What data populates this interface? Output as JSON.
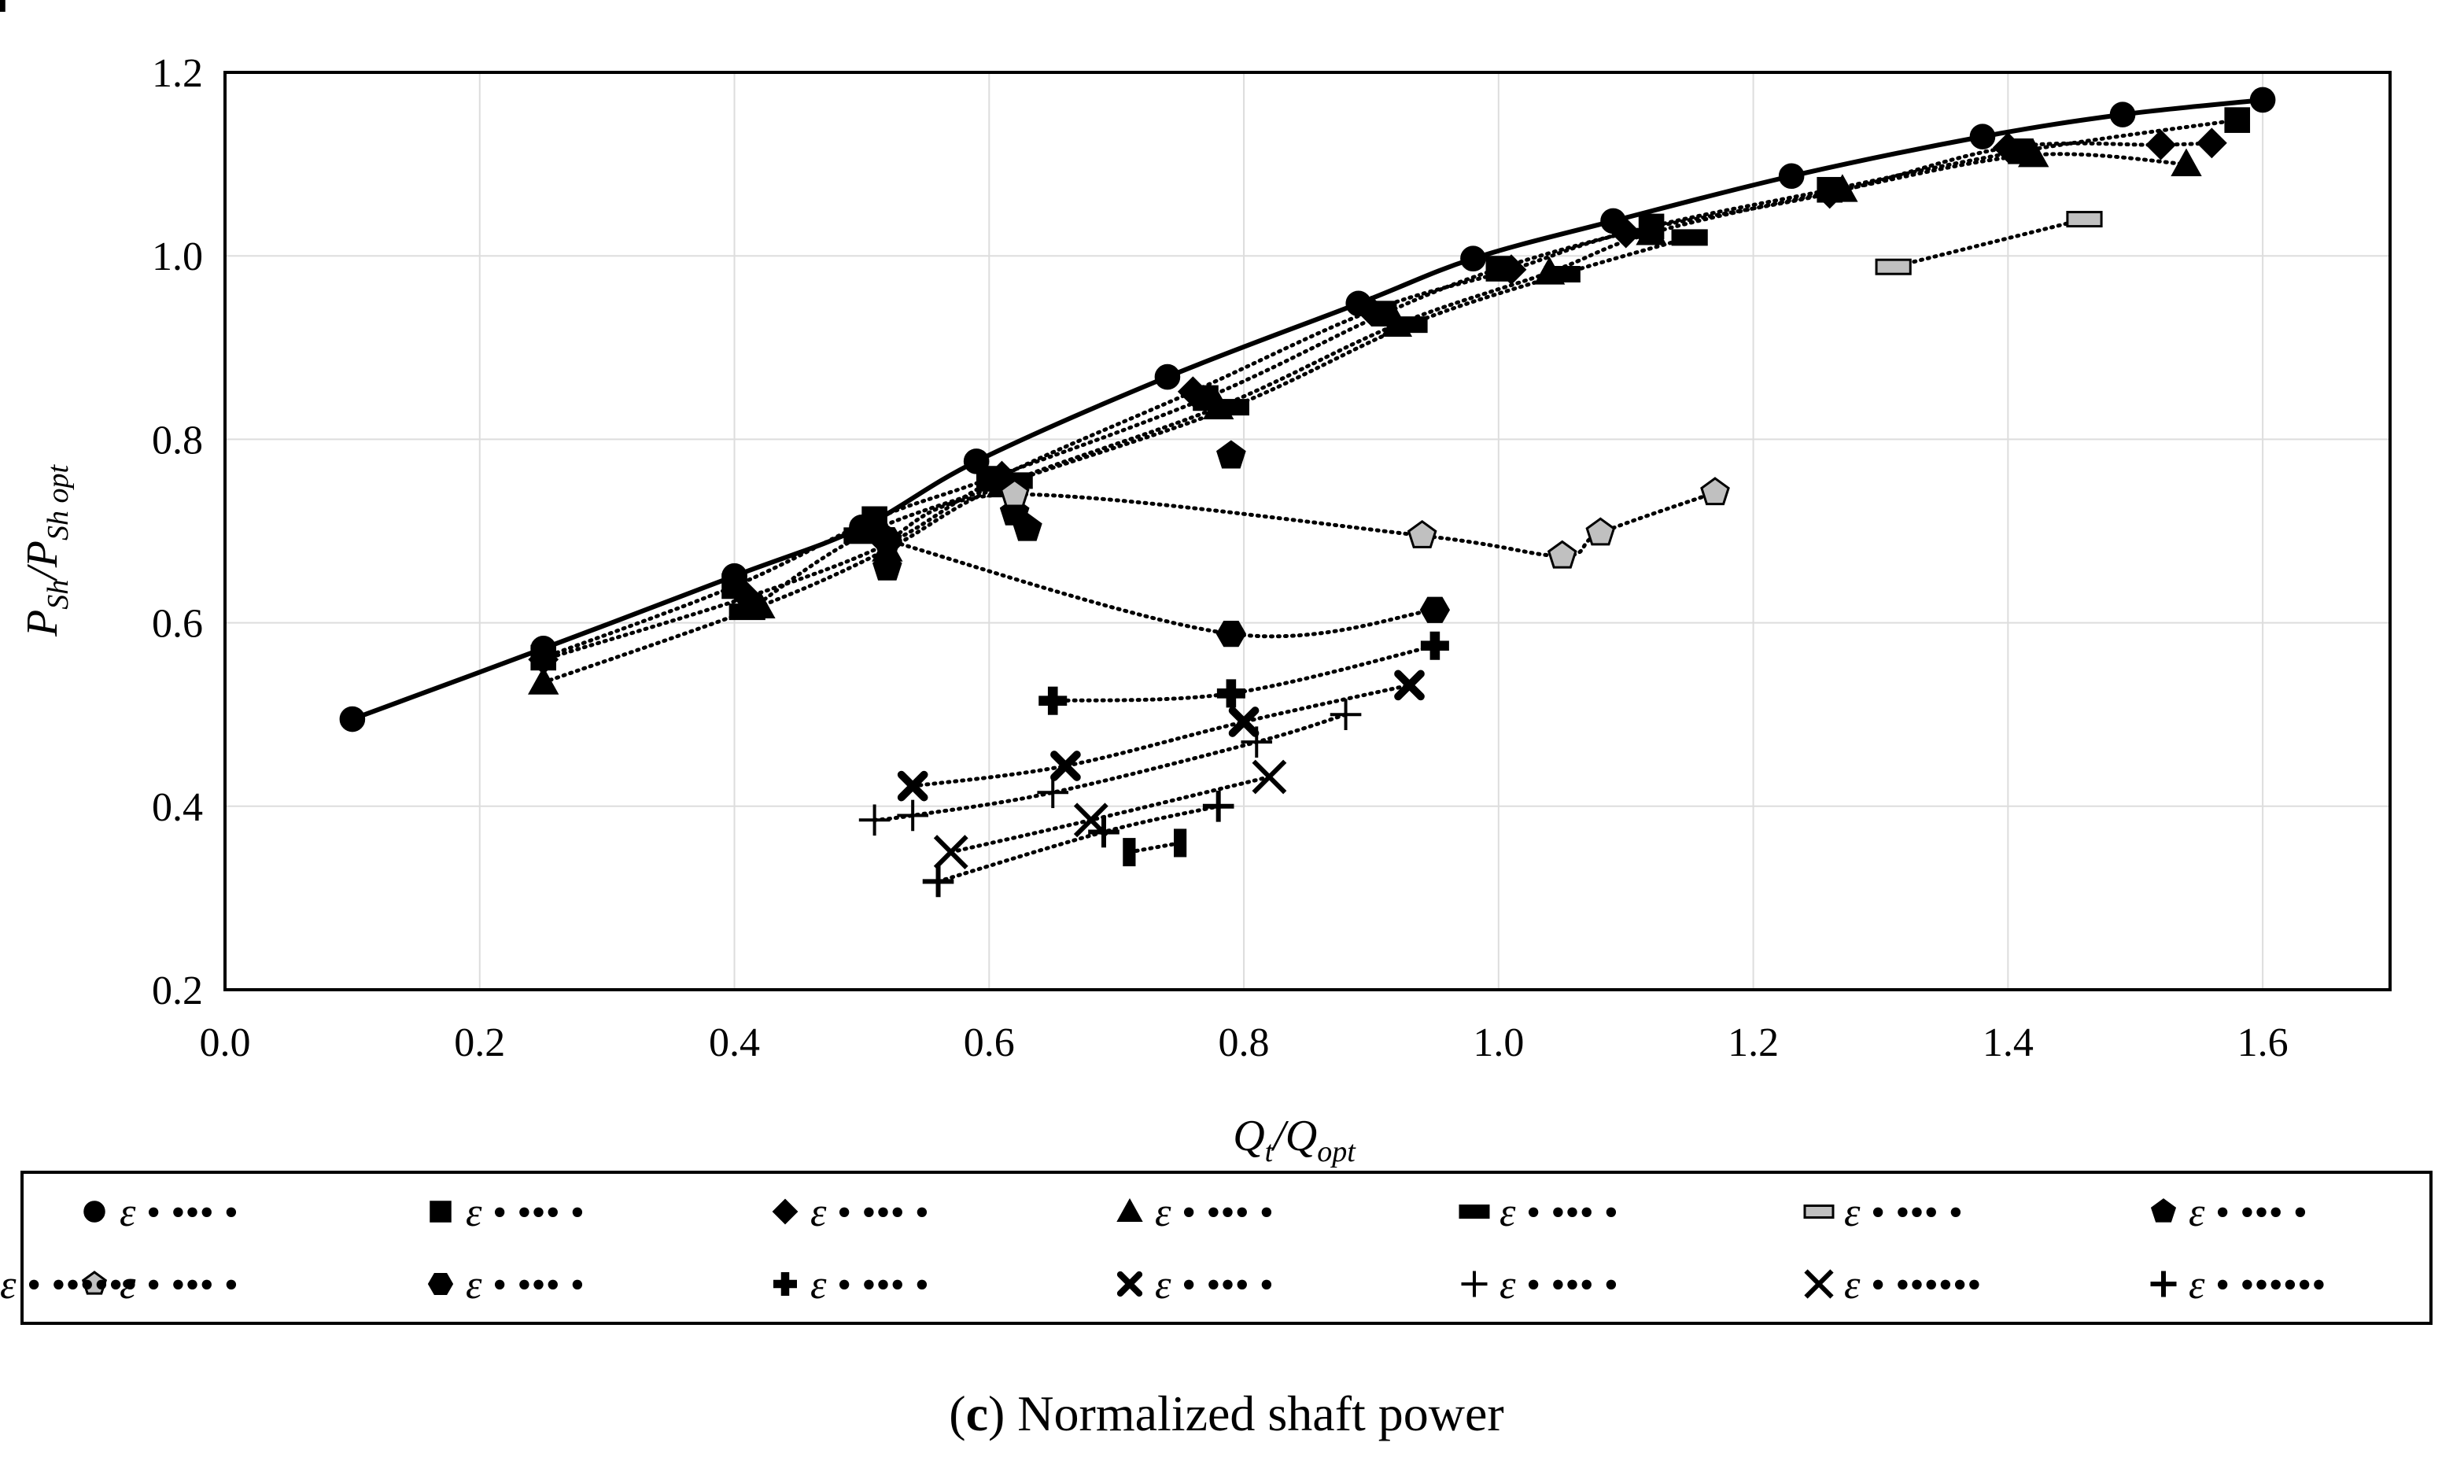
{
  "caption": {
    "label": "c",
    "text": "Normalized shaft power"
  },
  "chart_data": {
    "type": "scatter",
    "xlabel": "Q_t/Q_opt",
    "ylabel": "P_Sh/P_Sh opt",
    "xlim": [
      0.0,
      1.7
    ],
    "ylim": [
      0.2,
      1.2
    ],
    "xticks": [
      0.0,
      0.2,
      0.4,
      0.6,
      0.8,
      1.0,
      1.2,
      1.4,
      1.6
    ],
    "yticks": [
      0.2,
      0.4,
      0.6,
      0.8,
      1.0,
      1.2
    ],
    "grid": true,
    "legend_position": "bottom",
    "legend_symbol_text": "ε • ••• •",
    "series": [
      {
        "marker": "circle",
        "fill": "#000000",
        "line": "solid",
        "legend_text": "ε • ••• •",
        "x": [
          0.1,
          0.25,
          0.4,
          0.5,
          0.59,
          0.74,
          0.89,
          0.98,
          1.09,
          1.23,
          1.38,
          1.49,
          1.6
        ],
        "y": [
          0.495,
          0.572,
          0.651,
          0.704,
          0.776,
          0.868,
          0.948,
          0.997,
          1.038,
          1.087,
          1.13,
          1.154,
          1.17
        ]
      },
      {
        "marker": "square",
        "fill": "#000000",
        "line": "dotted",
        "legend_text": "ε • ••• •",
        "x": [
          0.25,
          0.4,
          0.51,
          0.6,
          0.77,
          0.91,
          1.0,
          1.12,
          1.26,
          1.41,
          1.58
        ],
        "y": [
          0.562,
          0.64,
          0.713,
          0.757,
          0.845,
          0.937,
          0.986,
          1.032,
          1.072,
          1.114,
          1.148
        ]
      },
      {
        "marker": "diamond",
        "fill": "#000000",
        "line": "dotted",
        "legend_text": "ε • ••• •",
        "x": [
          0.25,
          0.41,
          0.52,
          0.61,
          0.76,
          0.9,
          1.01,
          1.1,
          1.26,
          1.4,
          1.52,
          1.56
        ],
        "y": [
          0.56,
          0.628,
          0.686,
          0.76,
          0.852,
          0.94,
          0.985,
          1.025,
          1.068,
          1.118,
          1.121,
          1.123
        ]
      },
      {
        "marker": "triangle",
        "fill": "#000000",
        "line": "dotted",
        "legend_text": "ε • ••• •",
        "x": [
          0.25,
          0.42,
          0.52,
          0.61,
          0.78,
          0.92,
          1.04,
          1.12,
          1.27,
          1.42,
          1.54
        ],
        "y": [
          0.535,
          0.618,
          0.68,
          0.75,
          0.835,
          0.925,
          0.982,
          1.025,
          1.072,
          1.11,
          1.1
        ]
      },
      {
        "marker": "rect",
        "fill": "#000000",
        "line": "dotted",
        "legend_text": "ε • ••• •",
        "x": [
          0.41,
          0.5,
          0.62,
          0.79,
          0.93,
          1.05,
          1.15
        ],
        "y": [
          0.612,
          0.695,
          0.755,
          0.835,
          0.925,
          0.98,
          1.02
        ]
      },
      {
        "marker": "rect",
        "fill": "#c0c0c0",
        "line": "dotted",
        "legend_text": "ε • ••• •",
        "x": [
          1.31,
          1.46
        ],
        "y": [
          0.988,
          1.04
        ]
      },
      {
        "marker": "pentagon",
        "fill": "#000000",
        "line": "none",
        "legend_text": "ε • ••• •",
        "x": [
          0.52,
          0.62,
          0.63,
          0.79
        ],
        "y": [
          0.66,
          0.72,
          0.703,
          0.782
        ]
      },
      {
        "marker": "pentagon",
        "fill": "#c0c0c0",
        "line": "dotted",
        "legend_text": "ε • ••• •",
        "x": [
          0.52,
          0.62,
          0.94,
          1.05,
          1.08,
          1.17
        ],
        "y": [
          0.69,
          0.74,
          0.695,
          0.673,
          0.698,
          0.742
        ]
      },
      {
        "marker": "hexagon",
        "fill": "#000000",
        "line": "dotted",
        "legend_text": "ε • ••• •",
        "x": [
          0.52,
          0.79,
          0.95
        ],
        "y": [
          0.69,
          0.588,
          0.614
        ]
      },
      {
        "marker": "plus-bold",
        "fill": "#000000",
        "line": "dotted",
        "legend_text": "ε • ••• •",
        "x": [
          0.65,
          0.79,
          0.95
        ],
        "y": [
          0.515,
          0.523,
          0.575
        ]
      },
      {
        "marker": "x-bold",
        "fill": "#000000",
        "line": "dotted",
        "legend_text": "ε • ••• •",
        "x": [
          0.54,
          0.66,
          0.8,
          0.93
        ],
        "y": [
          0.422,
          0.444,
          0.492,
          0.532
        ]
      },
      {
        "marker": "plus-thin",
        "fill": "#000000",
        "line": "dotted",
        "legend_text": "ε • ••• •",
        "x": [
          0.51,
          0.54,
          0.65,
          0.81,
          0.88
        ],
        "y": [
          0.385,
          0.39,
          0.415,
          0.47,
          0.5
        ]
      },
      {
        "marker": "x-large",
        "fill": "#000000",
        "line": "dotted",
        "legend_text": "ε • ••••••",
        "x": [
          0.57,
          0.68,
          0.82
        ],
        "y": [
          0.35,
          0.385,
          0.432
        ]
      },
      {
        "marker": "plus-medium",
        "fill": "#000000",
        "line": "dotted",
        "legend_text": "ε • ••••••",
        "x": [
          0.56,
          0.69,
          0.78
        ],
        "y": [
          0.318,
          0.372,
          0.4
        ]
      },
      {
        "marker": "bar",
        "fill": "#000000",
        "line": "dotted",
        "legend_text": "ε • ••••••",
        "x": [
          0.71,
          0.75
        ],
        "y": [
          0.35,
          0.36
        ]
      }
    ]
  }
}
